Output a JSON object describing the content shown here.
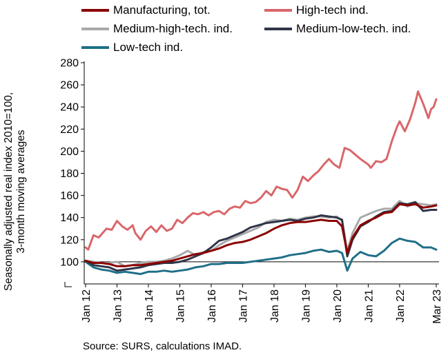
{
  "chart_data": {
    "type": "line",
    "ylabel_lines": [
      "Seasonally adjusted real index 2010=100,",
      "3-month moving averages"
    ],
    "yticks": [
      100,
      120,
      140,
      160,
      180,
      200,
      220,
      240,
      260,
      280
    ],
    "ylim": [
      80,
      280
    ],
    "xticks": [
      "Jan 12",
      "Jan 13",
      "Jan 14",
      "Jan 15",
      "Jan 16",
      "Jan 17",
      "Jan 18",
      "Jan 19",
      "Jan 20",
      "Jan 21",
      "Jan 22",
      "Mar 23"
    ],
    "reference_line": 100,
    "grid": false,
    "legend_position": "top",
    "source": "Source: SURS, calculations IMAD.",
    "series": [
      {
        "name": "Manufacturing, tot.",
        "color": "#8b0000",
        "points": [
          [
            "2012-01",
            101
          ],
          [
            "2012-04",
            99
          ],
          [
            "2012-07",
            99
          ],
          [
            "2012-10",
            98
          ],
          [
            "2013-01",
            96
          ],
          [
            "2013-04",
            96
          ],
          [
            "2013-07",
            97
          ],
          [
            "2013-10",
            97
          ],
          [
            "2014-01",
            98
          ],
          [
            "2014-04",
            99
          ],
          [
            "2014-07",
            100
          ],
          [
            "2014-10",
            101
          ],
          [
            "2015-01",
            103
          ],
          [
            "2015-04",
            105
          ],
          [
            "2015-07",
            107
          ],
          [
            "2015-10",
            108
          ],
          [
            "2016-01",
            110
          ],
          [
            "2016-04",
            112
          ],
          [
            "2016-07",
            115
          ],
          [
            "2016-10",
            117
          ],
          [
            "2017-01",
            118
          ],
          [
            "2017-04",
            120
          ],
          [
            "2017-07",
            123
          ],
          [
            "2017-10",
            126
          ],
          [
            "2018-01",
            130
          ],
          [
            "2018-04",
            133
          ],
          [
            "2018-07",
            135
          ],
          [
            "2018-10",
            136
          ],
          [
            "2019-01",
            136
          ],
          [
            "2019-04",
            137
          ],
          [
            "2019-07",
            138
          ],
          [
            "2019-10",
            137
          ],
          [
            "2020-01",
            137
          ],
          [
            "2020-03",
            132
          ],
          [
            "2020-05",
            108
          ],
          [
            "2020-07",
            122
          ],
          [
            "2020-10",
            133
          ],
          [
            "2021-01",
            137
          ],
          [
            "2021-04",
            140
          ],
          [
            "2021-07",
            144
          ],
          [
            "2021-10",
            145
          ],
          [
            "2022-01",
            152
          ],
          [
            "2022-04",
            151
          ],
          [
            "2022-07",
            152
          ],
          [
            "2022-10",
            149
          ],
          [
            "2023-01",
            150
          ],
          [
            "2023-03",
            151
          ]
        ]
      },
      {
        "name": "High-tech ind.",
        "color": "#d9666a",
        "points": [
          [
            "2012-01",
            113
          ],
          [
            "2012-02",
            111
          ],
          [
            "2012-04",
            124
          ],
          [
            "2012-06",
            122
          ],
          [
            "2012-09",
            130
          ],
          [
            "2012-11",
            129
          ],
          [
            "2013-01",
            137
          ],
          [
            "2013-03",
            132
          ],
          [
            "2013-05",
            129
          ],
          [
            "2013-07",
            133
          ],
          [
            "2013-08",
            126
          ],
          [
            "2013-10",
            120
          ],
          [
            "2013-12",
            128
          ],
          [
            "2014-02",
            132
          ],
          [
            "2014-04",
            127
          ],
          [
            "2014-06",
            133
          ],
          [
            "2014-08",
            128
          ],
          [
            "2014-10",
            130
          ],
          [
            "2014-12",
            138
          ],
          [
            "2015-02",
            135
          ],
          [
            "2015-04",
            140
          ],
          [
            "2015-06",
            144
          ],
          [
            "2015-08",
            143
          ],
          [
            "2015-10",
            145
          ],
          [
            "2015-12",
            142
          ],
          [
            "2016-02",
            145
          ],
          [
            "2016-04",
            146
          ],
          [
            "2016-06",
            143
          ],
          [
            "2016-08",
            148
          ],
          [
            "2016-10",
            150
          ],
          [
            "2016-12",
            149
          ],
          [
            "2017-02",
            155
          ],
          [
            "2017-04",
            153
          ],
          [
            "2017-06",
            154
          ],
          [
            "2017-08",
            158
          ],
          [
            "2017-10",
            164
          ],
          [
            "2017-12",
            160
          ],
          [
            "2018-02",
            168
          ],
          [
            "2018-04",
            166
          ],
          [
            "2018-06",
            165
          ],
          [
            "2018-08",
            158
          ],
          [
            "2018-10",
            165
          ],
          [
            "2018-12",
            177
          ],
          [
            "2019-02",
            173
          ],
          [
            "2019-04",
            178
          ],
          [
            "2019-06",
            182
          ],
          [
            "2019-08",
            188
          ],
          [
            "2019-10",
            193
          ],
          [
            "2019-12",
            188
          ],
          [
            "2020-02",
            185
          ],
          [
            "2020-04",
            203
          ],
          [
            "2020-06",
            201
          ],
          [
            "2020-08",
            197
          ],
          [
            "2020-10",
            193
          ],
          [
            "2021-01",
            188
          ],
          [
            "2021-02",
            185
          ],
          [
            "2021-04",
            191
          ],
          [
            "2021-06",
            190
          ],
          [
            "2021-08",
            193
          ],
          [
            "2021-10",
            209
          ],
          [
            "2021-12",
            222
          ],
          [
            "2022-01",
            227
          ],
          [
            "2022-03",
            218
          ],
          [
            "2022-05",
            229
          ],
          [
            "2022-07",
            244
          ],
          [
            "2022-08",
            254
          ],
          [
            "2022-10",
            243
          ],
          [
            "2022-12",
            230
          ],
          [
            "2023-01",
            238
          ],
          [
            "2023-02",
            240
          ],
          [
            "2023-03",
            247
          ]
        ]
      },
      {
        "name": "Medium-high-tech. ind.",
        "color": "#a9a9a9",
        "points": [
          [
            "2012-01",
            101
          ],
          [
            "2012-04",
            100
          ],
          [
            "2012-07",
            99
          ],
          [
            "2012-10",
            99
          ],
          [
            "2013-01",
            100
          ],
          [
            "2013-04",
            96
          ],
          [
            "2013-07",
            97
          ],
          [
            "2013-10",
            99
          ],
          [
            "2014-01",
            100
          ],
          [
            "2014-04",
            100
          ],
          [
            "2014-07",
            101
          ],
          [
            "2014-10",
            103
          ],
          [
            "2015-01",
            106
          ],
          [
            "2015-04",
            110
          ],
          [
            "2015-07",
            106
          ],
          [
            "2015-10",
            109
          ],
          [
            "2016-01",
            110
          ],
          [
            "2016-04",
            115
          ],
          [
            "2016-07",
            119
          ],
          [
            "2016-10",
            122
          ],
          [
            "2017-01",
            125
          ],
          [
            "2017-04",
            128
          ],
          [
            "2017-07",
            131
          ],
          [
            "2017-10",
            136
          ],
          [
            "2018-01",
            138
          ],
          [
            "2018-04",
            137
          ],
          [
            "2018-07",
            139
          ],
          [
            "2018-10",
            138
          ],
          [
            "2019-01",
            140
          ],
          [
            "2019-04",
            141
          ],
          [
            "2019-07",
            141
          ],
          [
            "2019-10",
            140
          ],
          [
            "2020-01",
            141
          ],
          [
            "2020-03",
            137
          ],
          [
            "2020-05",
            110
          ],
          [
            "2020-07",
            126
          ],
          [
            "2020-10",
            140
          ],
          [
            "2021-01",
            143
          ],
          [
            "2021-04",
            146
          ],
          [
            "2021-07",
            148
          ],
          [
            "2021-10",
            148
          ],
          [
            "2022-01",
            155
          ],
          [
            "2022-04",
            150
          ],
          [
            "2022-07",
            153
          ],
          [
            "2022-10",
            152
          ],
          [
            "2023-01",
            151
          ],
          [
            "2023-03",
            152
          ]
        ]
      },
      {
        "name": "Medium-low-tech. ind.",
        "color": "#2f3548",
        "points": [
          [
            "2012-01",
            101
          ],
          [
            "2012-04",
            97
          ],
          [
            "2012-07",
            96
          ],
          [
            "2012-10",
            95
          ],
          [
            "2013-01",
            92
          ],
          [
            "2013-04",
            93
          ],
          [
            "2013-07",
            94
          ],
          [
            "2013-10",
            95
          ],
          [
            "2014-01",
            97
          ],
          [
            "2014-04",
            98
          ],
          [
            "2014-07",
            99
          ],
          [
            "2014-10",
            99
          ],
          [
            "2015-01",
            100
          ],
          [
            "2015-04",
            102
          ],
          [
            "2015-07",
            105
          ],
          [
            "2015-10",
            108
          ],
          [
            "2016-01",
            113
          ],
          [
            "2016-04",
            119
          ],
          [
            "2016-07",
            121
          ],
          [
            "2016-10",
            124
          ],
          [
            "2017-01",
            127
          ],
          [
            "2017-04",
            131
          ],
          [
            "2017-07",
            133
          ],
          [
            "2017-10",
            135
          ],
          [
            "2018-01",
            136
          ],
          [
            "2018-04",
            137
          ],
          [
            "2018-07",
            138
          ],
          [
            "2018-10",
            137
          ],
          [
            "2019-01",
            139
          ],
          [
            "2019-04",
            140
          ],
          [
            "2019-07",
            142
          ],
          [
            "2019-10",
            141
          ],
          [
            "2020-01",
            140
          ],
          [
            "2020-03",
            138
          ],
          [
            "2020-05",
            105
          ],
          [
            "2020-07",
            120
          ],
          [
            "2020-10",
            132
          ],
          [
            "2021-01",
            136
          ],
          [
            "2021-04",
            141
          ],
          [
            "2021-07",
            145
          ],
          [
            "2021-10",
            146
          ],
          [
            "2022-01",
            153
          ],
          [
            "2022-04",
            152
          ],
          [
            "2022-07",
            154
          ],
          [
            "2022-10",
            146
          ],
          [
            "2023-01",
            147
          ],
          [
            "2023-03",
            147
          ]
        ]
      },
      {
        "name": "Low-tech ind.",
        "color": "#1f6f87",
        "points": [
          [
            "2012-01",
            100
          ],
          [
            "2012-04",
            95
          ],
          [
            "2012-07",
            93
          ],
          [
            "2012-10",
            92
          ],
          [
            "2013-01",
            90
          ],
          [
            "2013-04",
            91
          ],
          [
            "2013-07",
            90
          ],
          [
            "2013-10",
            89
          ],
          [
            "2014-01",
            91
          ],
          [
            "2014-04",
            91
          ],
          [
            "2014-07",
            92
          ],
          [
            "2014-10",
            91
          ],
          [
            "2015-01",
            92
          ],
          [
            "2015-04",
            93
          ],
          [
            "2015-07",
            95
          ],
          [
            "2015-10",
            96
          ],
          [
            "2016-01",
            98
          ],
          [
            "2016-04",
            98
          ],
          [
            "2016-07",
            99
          ],
          [
            "2016-10",
            99
          ],
          [
            "2017-01",
            99
          ],
          [
            "2017-04",
            100
          ],
          [
            "2017-07",
            101
          ],
          [
            "2017-10",
            102
          ],
          [
            "2018-01",
            103
          ],
          [
            "2018-04",
            104
          ],
          [
            "2018-07",
            106
          ],
          [
            "2018-10",
            107
          ],
          [
            "2019-01",
            108
          ],
          [
            "2019-04",
            110
          ],
          [
            "2019-07",
            111
          ],
          [
            "2019-10",
            109
          ],
          [
            "2020-01",
            110
          ],
          [
            "2020-03",
            108
          ],
          [
            "2020-05",
            92
          ],
          [
            "2020-07",
            103
          ],
          [
            "2020-10",
            109
          ],
          [
            "2021-01",
            106
          ],
          [
            "2021-04",
            105
          ],
          [
            "2021-07",
            110
          ],
          [
            "2021-10",
            117
          ],
          [
            "2022-01",
            121
          ],
          [
            "2022-04",
            119
          ],
          [
            "2022-07",
            118
          ],
          [
            "2022-10",
            113
          ],
          [
            "2023-01",
            113
          ],
          [
            "2023-03",
            111
          ]
        ]
      }
    ]
  }
}
